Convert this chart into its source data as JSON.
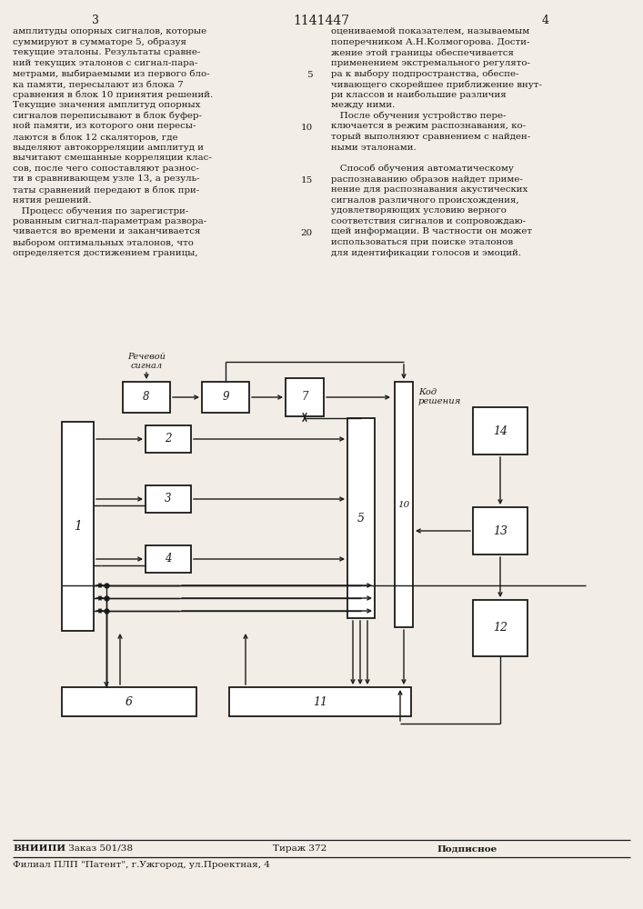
{
  "bg_color": "#f2ede6",
  "text_color": "#1a1a1a",
  "page_number_left": "3",
  "page_number_center": "1141447",
  "page_number_right": "4",
  "col1_lines": [
    "амплитуды опорных сигналов, которые",
    "суммируют в сумматоре 5, образуя",
    "текущие эталоны. Результаты сравне-",
    "ний текущих эталонов с сигнал-пара-",
    "метрами, выбираемыми из первого бло-",
    "ка памяти, пересылают из блока 7",
    "сравнения в блок 10 принятия решений.",
    "Текущие значения амплитуд опорных",
    "сигналов переписывают в блок буфер-",
    "ной памяти, из которого они пересы-",
    "лаются в блок 12 скаляторов, где",
    "выделяют автокорреляции амплитуд и",
    "вычитают смешанные корреляции клас-",
    "сов, после чего сопоставляют разнос-",
    "ти в сравнивающем узле 13, а резуль-",
    "таты сравнений передают в блок при-",
    "нятия решений.",
    "   Процесс обучения по зарегистри-",
    "рованным сигнал-параметрам развора-",
    "чивается во времени и заканчивается",
    "выбором оптимальных эталонов, что",
    "определяется достижением границы,"
  ],
  "col2_lines": [
    "оцениваемой показателем, называемым",
    "поперечником А.Н.Колмогорова. Дости-",
    "жение этой границы обеспечивается",
    "применением экстремального регулято-",
    "ра к выбору подпространства, обеспе-",
    "чивающего скорейшее приближение внут-",
    "ри классов и наибольшие различия",
    "между ними.",
    "   После обучения устройство пере-",
    "ключается в режим распознавания, ко-",
    "торый выполняют сравнением с найден-",
    "ными эталонами.",
    "",
    "   Способ обучения автоматическому",
    "распознаванию образов найдет приме-",
    "нение для распознавания акустических",
    "сигналов различного происхождения,",
    "удовлетворяющих условию верного",
    "соответствия сигналов и сопровождаю-",
    "щей информации. В частности он может",
    "использоваться при поиске эталонов",
    "для идентификации голосов и эмоций."
  ],
  "line_numbers": [
    {
      "num": "5",
      "row": 4
    },
    {
      "num": "10",
      "row": 9
    },
    {
      "num": "15",
      "row": 14
    },
    {
      "num": "20",
      "row": 19
    }
  ]
}
